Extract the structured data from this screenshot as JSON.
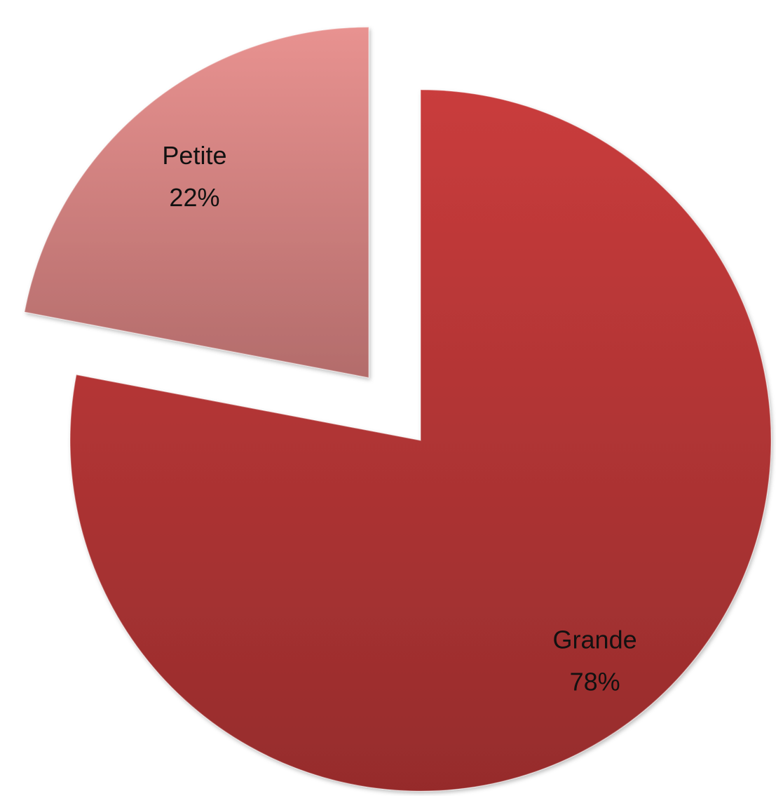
{
  "chart_data": {
    "type": "pie",
    "title": "",
    "slices": [
      {
        "label": "Grande",
        "value": 78,
        "value_label": "78%",
        "color": "#b3383a",
        "exploded": false
      },
      {
        "label": "Petite",
        "value": 22,
        "value_label": "22%",
        "color": "#d48583",
        "exploded": true
      }
    ],
    "legend": "none",
    "start_angle_deg": 0,
    "direction": "clockwise"
  }
}
